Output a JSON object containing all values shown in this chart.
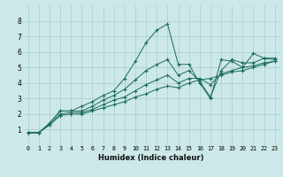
{
  "title": "",
  "xlabel": "Humidex (Indice chaleur)",
  "ylabel": "",
  "bg_color": "#cce8e8",
  "grid_color": "#aacccc",
  "line_color": "#1a6b5a",
  "xlim": [
    -0.5,
    23.5
  ],
  "ylim": [
    0,
    9
  ],
  "xticks": [
    0,
    1,
    2,
    3,
    4,
    5,
    6,
    7,
    8,
    9,
    10,
    11,
    12,
    13,
    14,
    15,
    16,
    17,
    18,
    19,
    20,
    21,
    22,
    23
  ],
  "yticks": [
    1,
    2,
    3,
    4,
    5,
    6,
    7,
    8
  ],
  "series": [
    [
      0.8,
      0.8,
      1.4,
      2.2,
      2.2,
      2.5,
      2.8,
      3.2,
      3.5,
      4.3,
      5.4,
      6.6,
      7.4,
      7.8,
      5.2,
      5.2,
      4.0,
      3.0,
      5.5,
      5.4,
      5.0,
      5.9,
      5.6,
      5.6
    ],
    [
      0.8,
      0.8,
      1.4,
      2.2,
      2.2,
      2.2,
      2.5,
      2.9,
      3.2,
      3.6,
      4.2,
      4.8,
      5.2,
      5.5,
      4.5,
      4.8,
      4.1,
      3.1,
      4.8,
      5.5,
      5.3,
      5.3,
      5.6,
      5.5
    ],
    [
      0.8,
      0.8,
      1.3,
      2.0,
      2.1,
      2.1,
      2.3,
      2.6,
      2.9,
      3.1,
      3.5,
      3.9,
      4.2,
      4.5,
      4.0,
      4.3,
      4.3,
      3.9,
      4.6,
      4.8,
      5.0,
      5.1,
      5.3,
      5.4
    ],
    [
      0.8,
      0.8,
      1.3,
      1.9,
      2.0,
      2.0,
      2.2,
      2.4,
      2.6,
      2.8,
      3.1,
      3.3,
      3.6,
      3.8,
      3.7,
      4.0,
      4.2,
      4.3,
      4.5,
      4.7,
      4.8,
      5.0,
      5.2,
      5.4
    ]
  ],
  "xlabel_fontsize": 6.0,
  "xtick_fontsize": 4.8,
  "ytick_fontsize": 5.5
}
